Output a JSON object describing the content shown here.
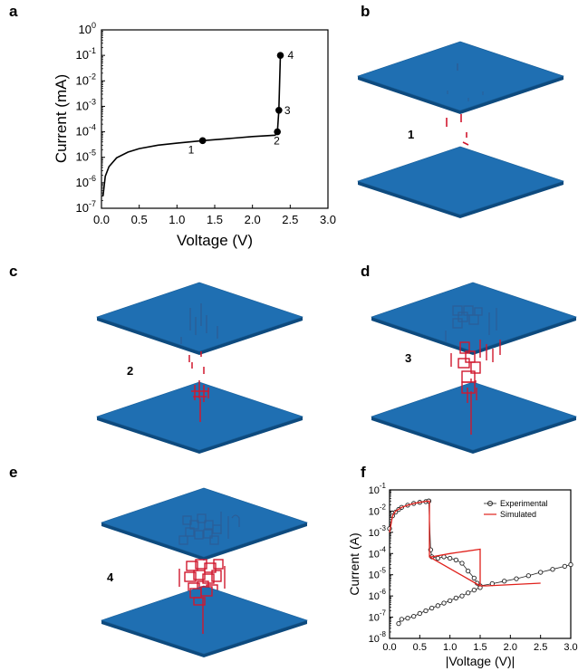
{
  "panels": {
    "a": "a",
    "b": "b",
    "c": "c",
    "d": "d",
    "e": "e",
    "f": "f"
  },
  "stage_labels": {
    "b": "1",
    "c": "2",
    "d": "3",
    "e": "4"
  },
  "colors": {
    "plate": "#1f6fb2",
    "plate_edge": "#0f4f86",
    "filament": "#d0182e",
    "blue_filament": "#2b5e97"
  },
  "chart_data": [
    {
      "type": "line",
      "panel": "a",
      "xlabel": "Voltage (V)",
      "ylabel": "Current (mA)",
      "xlim": [
        0.0,
        3.0
      ],
      "ylim_log10": [
        -7,
        0
      ],
      "y_scale": "log",
      "x_ticks": [
        "0.0",
        "0.5",
        "1.0",
        "1.5",
        "2.0",
        "2.5",
        "3.0"
      ],
      "y_ticks": [
        {
          "base": "10",
          "exp": "0"
        },
        {
          "base": "10",
          "exp": "-1"
        },
        {
          "base": "10",
          "exp": "-2"
        },
        {
          "base": "10",
          "exp": "-3"
        },
        {
          "base": "10",
          "exp": "-4"
        },
        {
          "base": "10",
          "exp": "-5"
        },
        {
          "base": "10",
          "exp": "-6"
        },
        {
          "base": "10",
          "exp": "-7"
        }
      ],
      "series": [
        {
          "x": [
            0.02,
            0.05,
            0.1,
            0.2,
            0.35,
            0.5,
            0.75,
            1.0,
            1.34,
            1.7,
            2.0,
            2.3,
            2.33,
            2.35,
            2.36,
            2.37
          ],
          "y": [
            3e-07,
            1.8e-06,
            4.3e-06,
            9.5e-06,
            1.6e-05,
            2.2e-05,
            3e-05,
            3.6e-05,
            4.5e-05,
            5.5e-05,
            6.5e-05,
            7.4e-05,
            0.0001,
            0.0007,
            0.01,
            0.1
          ]
        }
      ],
      "points": [
        {
          "label": "1",
          "x": 1.34,
          "y": 4.5e-05
        },
        {
          "label": "2",
          "x": 2.33,
          "y": 0.0001
        },
        {
          "label": "3",
          "x": 2.35,
          "y": 0.0007
        },
        {
          "label": "4",
          "x": 2.37,
          "y": 0.1
        }
      ],
      "grid": false
    },
    {
      "type": "line",
      "panel": "f",
      "xlabel": "|Voltage (V)|",
      "ylabel": "Current (A)",
      "xlim": [
        0.0,
        3.0
      ],
      "ylim_log10": [
        -8,
        -1
      ],
      "y_scale": "log",
      "x_ticks": [
        "0.0",
        "0.5",
        "1.0",
        "1.5",
        "2.0",
        "2.5",
        "3.0"
      ],
      "y_ticks": [
        {
          "base": "10",
          "exp": "-1"
        },
        {
          "base": "10",
          "exp": "-2"
        },
        {
          "base": "10",
          "exp": "-3"
        },
        {
          "base": "10",
          "exp": "-4"
        },
        {
          "base": "10",
          "exp": "-5"
        },
        {
          "base": "10",
          "exp": "-6"
        },
        {
          "base": "10",
          "exp": "-7"
        },
        {
          "base": "10",
          "exp": "-8"
        }
      ],
      "legend_position": "top-right",
      "series": [
        {
          "name": "Experimental",
          "color": "#222222",
          "marker": "circle",
          "segments": [
            {
              "x": [
                0.0,
                0.05,
                0.1,
                0.15,
                0.2,
                0.3,
                0.4,
                0.5,
                0.6,
                0.65
              ],
              "y": [
                0.0015,
                0.006,
                0.009,
                0.012,
                0.015,
                0.019,
                0.023,
                0.026,
                0.028,
                0.03
              ]
            },
            {
              "x": [
                0.65,
                0.68,
                0.7,
                0.8,
                0.9,
                1.0,
                1.1,
                1.2,
                1.3,
                1.4,
                1.45,
                1.5
              ],
              "y": [
                0.03,
                0.00015,
                7e-05,
                6e-05,
                7e-05,
                6e-05,
                5e-05,
                3.5e-05,
                1.5e-05,
                7e-06,
                4e-06,
                3e-06
              ]
            },
            {
              "x": [
                1.5,
                1.7,
                1.9,
                2.1,
                2.3,
                2.5,
                2.7,
                2.9,
                3.0
              ],
              "y": [
                3e-06,
                3.8e-06,
                5e-06,
                6.5e-06,
                9e-06,
                1.3e-05,
                1.8e-05,
                2.5e-05,
                3e-05
              ]
            },
            {
              "x": [
                0.15,
                0.2,
                0.3,
                0.4,
                0.5,
                0.6,
                0.7,
                0.8,
                0.9,
                1.0,
                1.1,
                1.2,
                1.3,
                1.4,
                1.5
              ],
              "y": [
                5e-08,
                8e-08,
                9e-08,
                1.1e-07,
                1.5e-07,
                2e-07,
                2.7e-07,
                3.5e-07,
                4.6e-07,
                6e-07,
                8e-07,
                1e-06,
                1.4e-06,
                1.9e-06,
                2.5e-06
              ]
            }
          ]
        },
        {
          "name": "Simulated",
          "color": "#e0201b",
          "marker": "none",
          "segments": [
            {
              "x": [
                0.0,
                0.05,
                0.1,
                0.2,
                0.3,
                0.4,
                0.5,
                0.6,
                0.66,
                0.66,
                0.7,
                1.0,
                1.5,
                1.5,
                1.6,
                2.5
              ],
              "y": [
                0.001,
                0.006,
                0.01,
                0.015,
                0.019,
                0.023,
                0.026,
                0.029,
                0.03,
                7e-05,
                7e-05,
                0.0001,
                0.00016,
                3e-06,
                3e-06,
                4e-06
              ]
            },
            {
              "x": [
                0.66,
                1.5
              ],
              "y": [
                7e-05,
                3e-06
              ]
            }
          ]
        }
      ],
      "grid": false
    }
  ]
}
